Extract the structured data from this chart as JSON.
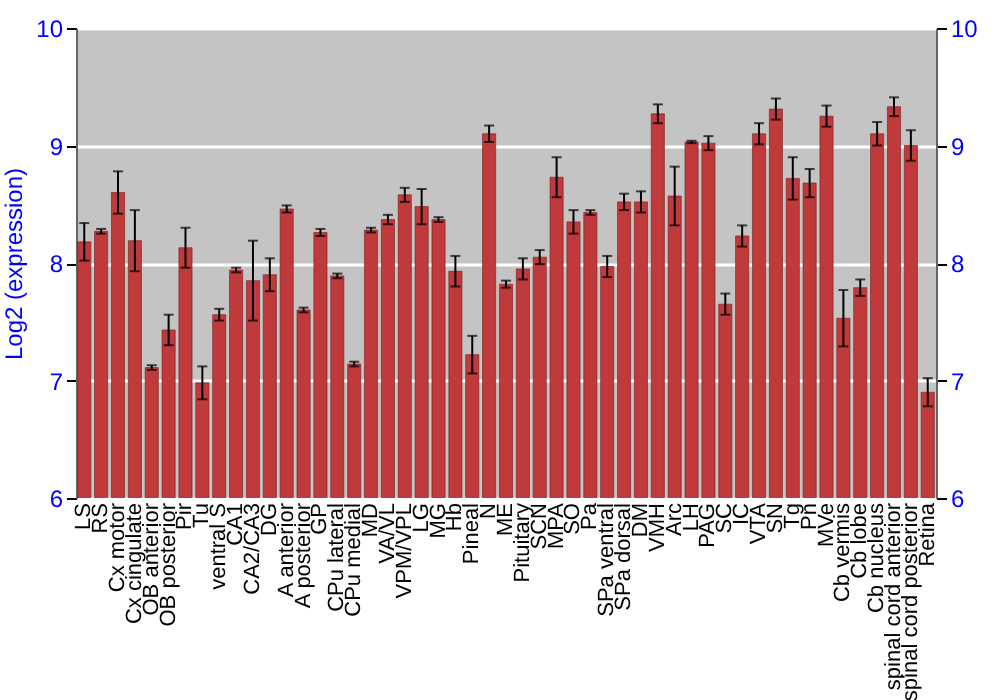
{
  "chart_data": {
    "type": "bar",
    "ylabel": "Log2 (expression)",
    "categories": [
      "LS",
      "RS",
      "Cx motor",
      "Cx cingulate",
      "OB anterior",
      "OB posterior",
      "Pir",
      "Tu",
      "ventral S",
      "CA1",
      "CA2/CA3",
      "DG",
      "A anterior",
      "A posterior",
      "GP",
      "CPu lateral",
      "CPu medial",
      "MD",
      "VA/VL",
      "VPM/VPL",
      "LG",
      "MG",
      "Hb",
      "Pineal",
      "N",
      "ME",
      "Pituitary",
      "SCN",
      "MPA",
      "SO",
      "Pa",
      "SPa ventral",
      "SPa dorsal",
      "DM",
      "VMH",
      "Arc",
      "LH",
      "PAG",
      "SC",
      "IC",
      "VTA",
      "SN",
      "Tg",
      "Pn",
      "MVe",
      "Cb vermis",
      "Cb lobe",
      "Cb nucleus",
      "spinal cord anterior",
      "spinal cord posterior",
      "Retina"
    ],
    "series": [
      {
        "color": "#c0393b",
        "values": [
          8.18,
          8.27,
          8.6,
          8.19,
          7.11,
          7.43,
          8.13,
          6.98,
          7.56,
          7.94,
          7.85,
          7.9,
          8.46,
          7.6,
          8.26,
          7.89,
          7.14,
          8.28,
          8.37,
          8.58,
          8.48,
          8.37,
          7.93,
          7.22,
          9.1,
          7.82,
          7.95,
          8.05,
          8.73,
          8.35,
          8.43,
          7.97,
          8.52,
          8.52,
          9.27,
          8.57,
          9.03,
          9.02,
          7.65,
          8.23,
          9.1,
          9.31,
          8.72,
          8.68,
          9.25,
          7.53,
          7.79,
          9.1,
          9.33,
          9.0,
          6.9
        ],
        "errors": [
          0.16,
          0.02,
          0.18,
          0.26,
          0.02,
          0.13,
          0.17,
          0.14,
          0.05,
          0.02,
          0.34,
          0.14,
          0.03,
          0.02,
          0.03,
          0.02,
          0.02,
          0.02,
          0.04,
          0.06,
          0.15,
          0.02,
          0.13,
          0.16,
          0.07,
          0.03,
          0.09,
          0.06,
          0.17,
          0.1,
          0.02,
          0.09,
          0.07,
          0.09,
          0.08,
          0.25,
          0.01,
          0.06,
          0.09,
          0.09,
          0.09,
          0.09,
          0.18,
          0.12,
          0.09,
          0.24,
          0.07,
          0.1,
          0.08,
          0.13,
          0.12
        ]
      }
    ],
    "ylim": [
      6,
      10
    ],
    "yticks": [
      6,
      7,
      8,
      9,
      10
    ],
    "y2lim": [
      6,
      10
    ],
    "y2ticks": [
      6,
      7,
      8,
      9,
      10
    ],
    "grid": "y"
  }
}
